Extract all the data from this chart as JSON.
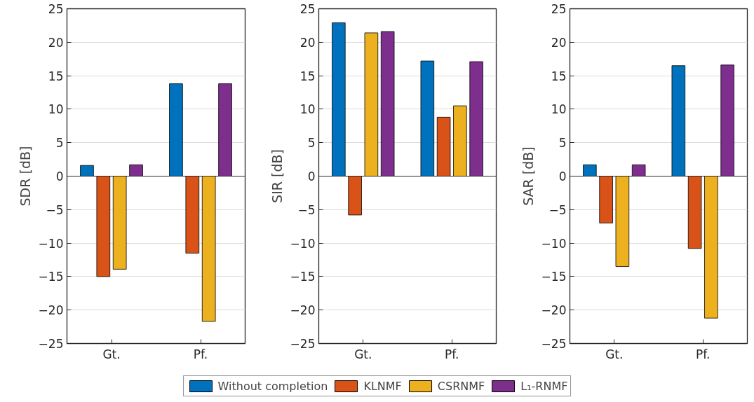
{
  "chart_data": [
    {
      "type": "bar",
      "ylabel": "SDR [dB]",
      "categories": [
        "Gt.",
        "Pf."
      ],
      "ylim": [
        -25,
        25
      ],
      "yticks": [
        -25,
        -20,
        -15,
        -10,
        -5,
        0,
        5,
        10,
        15,
        20,
        25
      ],
      "grid": "y",
      "series": [
        {
          "color": "#0072bd",
          "values": [
            1.6,
            13.8
          ]
        },
        {
          "color": "#d95319",
          "values": [
            -15.0,
            -11.5
          ]
        },
        {
          "color": "#edb120",
          "values": [
            -13.9,
            -21.7
          ]
        },
        {
          "color": "#7e2f8e",
          "values": [
            1.7,
            13.8
          ]
        }
      ]
    },
    {
      "type": "bar",
      "ylabel": "SIR [dB]",
      "categories": [
        "Gt.",
        "Pf."
      ],
      "ylim": [
        -25,
        25
      ],
      "yticks": [
        -25,
        -20,
        -15,
        -10,
        -5,
        0,
        5,
        10,
        15,
        20,
        25
      ],
      "grid": "y",
      "legend": "bottom",
      "series": [
        {
          "name": "Without completion",
          "color": "#0072bd",
          "values": [
            22.9,
            17.2
          ]
        },
        {
          "name": "KLNMF",
          "color": "#d95319",
          "values": [
            -5.8,
            8.8
          ]
        },
        {
          "name": "CSRNMF",
          "color": "#edb120",
          "values": [
            21.4,
            10.5
          ]
        },
        {
          "name": "L₁-RNMF",
          "color": "#7e2f8e",
          "values": [
            21.6,
            17.1
          ]
        }
      ]
    },
    {
      "type": "bar",
      "ylabel": "SAR [dB]",
      "categories": [
        "Gt.",
        "Pf."
      ],
      "ylim": [
        -25,
        25
      ],
      "yticks": [
        -25,
        -20,
        -15,
        -10,
        -5,
        0,
        5,
        10,
        15,
        20,
        25
      ],
      "grid": "y",
      "series": [
        {
          "color": "#0072bd",
          "values": [
            1.7,
            16.5
          ]
        },
        {
          "color": "#d95319",
          "values": [
            -7.0,
            -10.8
          ]
        },
        {
          "color": "#edb120",
          "values": [
            -13.5,
            -21.2
          ]
        },
        {
          "color": "#7e2f8e",
          "values": [
            1.7,
            16.6
          ]
        }
      ]
    }
  ]
}
